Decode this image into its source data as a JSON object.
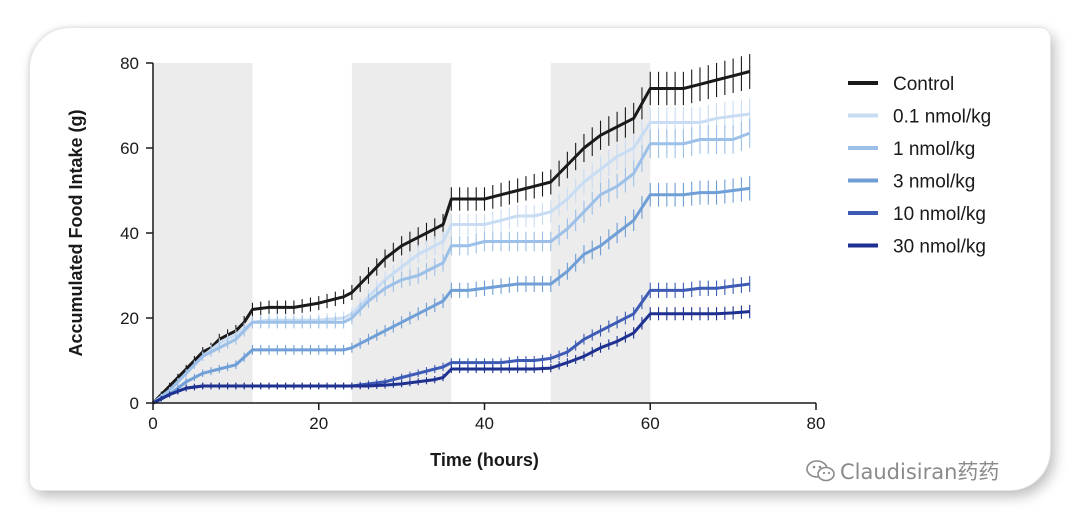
{
  "chart_data": {
    "type": "line",
    "title": "",
    "xlabel": "Time (hours)",
    "ylabel": "Accumulated Food Intake (g)",
    "xlim": [
      0,
      80
    ],
    "ylim": [
      0,
      80
    ],
    "xticks": [
      0,
      20,
      40,
      60,
      80
    ],
    "yticks": [
      0,
      20,
      40,
      60,
      80
    ],
    "dark_periods_hours": [
      [
        0,
        12
      ],
      [
        24,
        36
      ],
      [
        48,
        60
      ]
    ],
    "legend_placement": "right",
    "series": [
      {
        "name": "Control",
        "color": "#1a1a1a",
        "points": [
          [
            0,
            0
          ],
          [
            1,
            2
          ],
          [
            2,
            4
          ],
          [
            3,
            6
          ],
          [
            4,
            8
          ],
          [
            5,
            10
          ],
          [
            6,
            12
          ],
          [
            7,
            13
          ],
          [
            8,
            15
          ],
          [
            9,
            16
          ],
          [
            10,
            17
          ],
          [
            11,
            19
          ],
          [
            12,
            22
          ],
          [
            14,
            22.5
          ],
          [
            17,
            22.5
          ],
          [
            20,
            23.5
          ],
          [
            23,
            25
          ],
          [
            24,
            26
          ],
          [
            26,
            30
          ],
          [
            28,
            34
          ],
          [
            30,
            37
          ],
          [
            32,
            39
          ],
          [
            34,
            41
          ],
          [
            35,
            42
          ],
          [
            36,
            48
          ],
          [
            38,
            48
          ],
          [
            40,
            48
          ],
          [
            42,
            49
          ],
          [
            44,
            50
          ],
          [
            46,
            51
          ],
          [
            48,
            52
          ],
          [
            50,
            56
          ],
          [
            52,
            60
          ],
          [
            54,
            63
          ],
          [
            56,
            65
          ],
          [
            58,
            67
          ],
          [
            60,
            74
          ],
          [
            62,
            74
          ],
          [
            64,
            74
          ],
          [
            66,
            75
          ],
          [
            68,
            76
          ],
          [
            70,
            77
          ],
          [
            72,
            78
          ]
        ]
      },
      {
        "name": "0.1 nmol/kg",
        "color": "#c8dcf3",
        "points": [
          [
            0,
            0
          ],
          [
            2,
            3
          ],
          [
            4,
            7
          ],
          [
            6,
            11
          ],
          [
            8,
            14
          ],
          [
            10,
            16
          ],
          [
            12,
            19
          ],
          [
            14,
            19.5
          ],
          [
            17,
            19.5
          ],
          [
            20,
            19.5
          ],
          [
            23,
            20
          ],
          [
            24,
            21
          ],
          [
            26,
            25
          ],
          [
            28,
            29
          ],
          [
            30,
            32
          ],
          [
            32,
            35
          ],
          [
            34,
            37
          ],
          [
            35,
            38
          ],
          [
            36,
            42
          ],
          [
            38,
            42
          ],
          [
            40,
            42
          ],
          [
            42,
            43
          ],
          [
            44,
            44
          ],
          [
            46,
            44
          ],
          [
            48,
            45
          ],
          [
            50,
            48
          ],
          [
            52,
            52
          ],
          [
            54,
            55
          ],
          [
            56,
            58
          ],
          [
            58,
            60
          ],
          [
            60,
            66
          ],
          [
            62,
            66
          ],
          [
            64,
            66
          ],
          [
            66,
            66
          ],
          [
            68,
            67
          ],
          [
            70,
            67.5
          ],
          [
            72,
            68
          ]
        ]
      },
      {
        "name": "1 nmol/kg",
        "color": "#9cc0e8",
        "points": [
          [
            0,
            0
          ],
          [
            2,
            3
          ],
          [
            4,
            7
          ],
          [
            6,
            11
          ],
          [
            8,
            13
          ],
          [
            10,
            15
          ],
          [
            12,
            19
          ],
          [
            14,
            19
          ],
          [
            17,
            19
          ],
          [
            20,
            19
          ],
          [
            23,
            19
          ],
          [
            24,
            20
          ],
          [
            26,
            24
          ],
          [
            28,
            27
          ],
          [
            30,
            29
          ],
          [
            32,
            30
          ],
          [
            34,
            32
          ],
          [
            35,
            33
          ],
          [
            36,
            37
          ],
          [
            38,
            37
          ],
          [
            40,
            38
          ],
          [
            42,
            38
          ],
          [
            44,
            38
          ],
          [
            46,
            38
          ],
          [
            48,
            38
          ],
          [
            50,
            41
          ],
          [
            52,
            45
          ],
          [
            54,
            49
          ],
          [
            56,
            51
          ],
          [
            58,
            54
          ],
          [
            60,
            61
          ],
          [
            62,
            61
          ],
          [
            64,
            61
          ],
          [
            66,
            62
          ],
          [
            68,
            62
          ],
          [
            70,
            62
          ],
          [
            72,
            63.5
          ]
        ]
      },
      {
        "name": "3 nmol/kg",
        "color": "#6f9fd6",
        "points": [
          [
            0,
            0
          ],
          [
            2,
            2
          ],
          [
            4,
            5
          ],
          [
            6,
            7
          ],
          [
            8,
            8
          ],
          [
            10,
            9
          ],
          [
            12,
            12.5
          ],
          [
            14,
            12.5
          ],
          [
            17,
            12.5
          ],
          [
            20,
            12.5
          ],
          [
            23,
            12.5
          ],
          [
            24,
            13
          ],
          [
            26,
            15
          ],
          [
            28,
            17
          ],
          [
            30,
            19
          ],
          [
            32,
            21
          ],
          [
            34,
            23
          ],
          [
            35,
            24
          ],
          [
            36,
            26.5
          ],
          [
            38,
            26.5
          ],
          [
            40,
            27
          ],
          [
            42,
            27.5
          ],
          [
            44,
            28
          ],
          [
            46,
            28
          ],
          [
            48,
            28
          ],
          [
            50,
            31
          ],
          [
            52,
            35
          ],
          [
            54,
            37
          ],
          [
            56,
            40
          ],
          [
            58,
            43
          ],
          [
            60,
            49
          ],
          [
            62,
            49
          ],
          [
            64,
            49
          ],
          [
            66,
            49.5
          ],
          [
            68,
            49.5
          ],
          [
            70,
            50
          ],
          [
            72,
            50.5
          ]
        ]
      },
      {
        "name": "10 nmol/kg",
        "color": "#3d5bb5",
        "points": [
          [
            0,
            0
          ],
          [
            2,
            2
          ],
          [
            4,
            3.5
          ],
          [
            6,
            4
          ],
          [
            8,
            4
          ],
          [
            10,
            4
          ],
          [
            12,
            4
          ],
          [
            14,
            4
          ],
          [
            17,
            4
          ],
          [
            20,
            4
          ],
          [
            24,
            4
          ],
          [
            26,
            4.5
          ],
          [
            28,
            5
          ],
          [
            30,
            6
          ],
          [
            32,
            7
          ],
          [
            34,
            8
          ],
          [
            35,
            8.5
          ],
          [
            36,
            9.5
          ],
          [
            38,
            9.5
          ],
          [
            40,
            9.5
          ],
          [
            42,
            9.5
          ],
          [
            44,
            10
          ],
          [
            46,
            10
          ],
          [
            48,
            10.5
          ],
          [
            50,
            12
          ],
          [
            52,
            15
          ],
          [
            54,
            17
          ],
          [
            56,
            19
          ],
          [
            58,
            21
          ],
          [
            60,
            26.5
          ],
          [
            62,
            26.5
          ],
          [
            64,
            26.5
          ],
          [
            66,
            27
          ],
          [
            68,
            27
          ],
          [
            70,
            27.5
          ],
          [
            72,
            28
          ]
        ]
      },
      {
        "name": "30 nmol/kg",
        "color": "#1e3190",
        "points": [
          [
            0,
            0
          ],
          [
            2,
            2
          ],
          [
            4,
            3.5
          ],
          [
            6,
            4
          ],
          [
            8,
            4
          ],
          [
            10,
            4
          ],
          [
            12,
            4
          ],
          [
            14,
            4
          ],
          [
            17,
            4
          ],
          [
            20,
            4
          ],
          [
            24,
            4
          ],
          [
            26,
            4
          ],
          [
            28,
            4.2
          ],
          [
            30,
            4.5
          ],
          [
            32,
            5
          ],
          [
            34,
            5.5
          ],
          [
            35,
            6
          ],
          [
            36,
            8
          ],
          [
            38,
            8
          ],
          [
            40,
            8
          ],
          [
            42,
            8
          ],
          [
            44,
            8
          ],
          [
            46,
            8
          ],
          [
            48,
            8.2
          ],
          [
            50,
            9.5
          ],
          [
            52,
            11
          ],
          [
            54,
            13
          ],
          [
            56,
            14.5
          ],
          [
            58,
            16.5
          ],
          [
            60,
            21
          ],
          [
            62,
            21
          ],
          [
            64,
            21
          ],
          [
            66,
            21
          ],
          [
            68,
            21
          ],
          [
            70,
            21.2
          ],
          [
            72,
            21.5
          ]
        ]
      }
    ]
  },
  "watermark": {
    "icon": "wechat-icon",
    "text": "Claudisiran药药"
  }
}
